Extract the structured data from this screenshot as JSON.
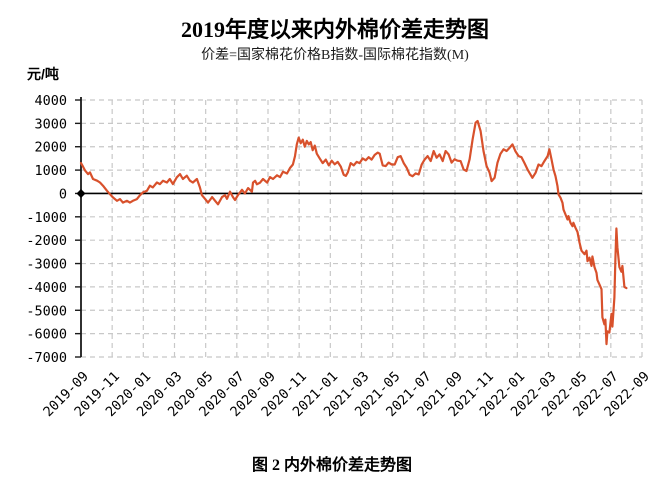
{
  "page": {
    "background": "#ffffff"
  },
  "figure_caption": "图 2  内外棉价差走势图",
  "chart_data": {
    "type": "line",
    "title": "2019年度以来内外棉价差走势图",
    "subtitle": "价差=国家棉花价格B指数-国际棉花指数(M)",
    "ylabel": "元/吨",
    "xlabel": "",
    "ylim": [
      -7000,
      4000
    ],
    "y_tick_step": 1000,
    "y_ticks": [
      4000,
      3000,
      2000,
      1000,
      0,
      -1000,
      -2000,
      -3000,
      -4000,
      -5000,
      -6000,
      -7000
    ],
    "x_tick_labels": [
      "2019-09",
      "2019-11",
      "2020-01",
      "2020-03",
      "2020-05",
      "2020-07",
      "2020-09",
      "2020-11",
      "2021-01",
      "2021-03",
      "2021-05",
      "2021-07",
      "2021-09",
      "2021-11",
      "2022-01",
      "2022-03",
      "2022-05",
      "2022-07",
      "2022-09"
    ],
    "x_range_months": [
      0,
      36
    ],
    "grid": "dashed-both-axes",
    "legend_position": "none",
    "zero_line": {
      "show": true,
      "color": "#000000"
    },
    "origin_marker": {
      "shape": "diamond",
      "x_month": 0,
      "value": 0,
      "color": "#000000"
    },
    "colors": {
      "line": "#d8512c",
      "grid": "#c8c8c8",
      "axis": "#1a1a1a",
      "text": "#000000"
    },
    "series": [
      {
        "name": "内外棉价差(国家棉花价格B指数-国际棉花指数M)",
        "color": "#d8512c",
        "x_unit": "months-since-2019-09",
        "y_unit": "元/吨",
        "points": [
          [
            0,
            1300
          ],
          [
            0.13,
            1150
          ],
          [
            0.26,
            980
          ],
          [
            0.45,
            830
          ],
          [
            0.58,
            900
          ],
          [
            0.77,
            620
          ],
          [
            1.03,
            545
          ],
          [
            1.22,
            470
          ],
          [
            1.41,
            330
          ],
          [
            1.67,
            115
          ],
          [
            1.86,
            -30
          ],
          [
            2.05,
            -170
          ],
          [
            2.31,
            -315
          ],
          [
            2.5,
            -240
          ],
          [
            2.69,
            -390
          ],
          [
            2.95,
            -315
          ],
          [
            3.14,
            -390
          ],
          [
            3.33,
            -315
          ],
          [
            3.59,
            -240
          ],
          [
            3.78,
            -80
          ],
          [
            3.97,
            45
          ],
          [
            4.23,
            115
          ],
          [
            4.42,
            330
          ],
          [
            4.61,
            260
          ],
          [
            4.87,
            470
          ],
          [
            5.06,
            400
          ],
          [
            5.26,
            545
          ],
          [
            5.51,
            470
          ],
          [
            5.7,
            620
          ],
          [
            5.9,
            400
          ],
          [
            6.15,
            690
          ],
          [
            6.35,
            830
          ],
          [
            6.54,
            620
          ],
          [
            6.79,
            760
          ],
          [
            6.99,
            545
          ],
          [
            7.18,
            470
          ],
          [
            7.44,
            620
          ],
          [
            7.63,
            260
          ],
          [
            7.76,
            -75
          ],
          [
            7.96,
            -230
          ],
          [
            8.15,
            -390
          ],
          [
            8.41,
            -155
          ],
          [
            8.6,
            -310
          ],
          [
            8.79,
            -465
          ],
          [
            9.05,
            -155
          ],
          [
            9.24,
            -75
          ],
          [
            9.37,
            -230
          ],
          [
            9.56,
            75
          ],
          [
            9.75,
            -150
          ],
          [
            9.88,
            -280
          ],
          [
            10.07,
            -75
          ],
          [
            10.33,
            155
          ],
          [
            10.52,
            0
          ],
          [
            10.72,
            230
          ],
          [
            10.97,
            75
          ],
          [
            11.04,
            465
          ],
          [
            11.17,
            540
          ],
          [
            11.29,
            390
          ],
          [
            11.49,
            465
          ],
          [
            11.68,
            620
          ],
          [
            11.94,
            465
          ],
          [
            12.13,
            700
          ],
          [
            12.32,
            620
          ],
          [
            12.58,
            775
          ],
          [
            12.77,
            700
          ],
          [
            12.96,
            930
          ],
          [
            13.22,
            855
          ],
          [
            13.41,
            1090
          ],
          [
            13.6,
            1240
          ],
          [
            13.73,
            1600
          ],
          [
            13.85,
            2100
          ],
          [
            13.97,
            2390
          ],
          [
            14.1,
            2150
          ],
          [
            14.23,
            2300
          ],
          [
            14.36,
            2000
          ],
          [
            14.49,
            2250
          ],
          [
            14.62,
            2100
          ],
          [
            14.74,
            2200
          ],
          [
            14.87,
            1850
          ],
          [
            15,
            2050
          ],
          [
            15.13,
            1700
          ],
          [
            15.32,
            1500
          ],
          [
            15.51,
            1300
          ],
          [
            15.71,
            1450
          ],
          [
            15.9,
            1200
          ],
          [
            16.09,
            1400
          ],
          [
            16.28,
            1250
          ],
          [
            16.47,
            1350
          ],
          [
            16.67,
            1150
          ],
          [
            16.86,
            800
          ],
          [
            16.99,
            750
          ],
          [
            17.12,
            900
          ],
          [
            17.31,
            1300
          ],
          [
            17.5,
            1200
          ],
          [
            17.69,
            1350
          ],
          [
            17.88,
            1300
          ],
          [
            18.08,
            1500
          ],
          [
            18.27,
            1420
          ],
          [
            18.46,
            1550
          ],
          [
            18.65,
            1450
          ],
          [
            18.85,
            1650
          ],
          [
            19.04,
            1750
          ],
          [
            19.17,
            1700
          ],
          [
            19.36,
            1200
          ],
          [
            19.55,
            1170
          ],
          [
            19.74,
            1320
          ],
          [
            19.94,
            1240
          ],
          [
            20.13,
            1240
          ],
          [
            20.32,
            1550
          ],
          [
            20.51,
            1600
          ],
          [
            20.71,
            1300
          ],
          [
            20.9,
            1100
          ],
          [
            21.09,
            800
          ],
          [
            21.28,
            740
          ],
          [
            21.47,
            860
          ],
          [
            21.67,
            815
          ],
          [
            21.86,
            1240
          ],
          [
            22.05,
            1450
          ],
          [
            22.24,
            1600
          ],
          [
            22.44,
            1385
          ],
          [
            22.63,
            1815
          ],
          [
            22.82,
            1530
          ],
          [
            23.01,
            1670
          ],
          [
            23.21,
            1385
          ],
          [
            23.4,
            1815
          ],
          [
            23.59,
            1670
          ],
          [
            23.78,
            1320
          ],
          [
            23.97,
            1460
          ],
          [
            24.17,
            1400
          ],
          [
            24.36,
            1385
          ],
          [
            24.55,
            1030
          ],
          [
            24.74,
            960
          ],
          [
            24.94,
            1460
          ],
          [
            25.13,
            2315
          ],
          [
            25.32,
            3030
          ],
          [
            25.45,
            3100
          ],
          [
            25.64,
            2670
          ],
          [
            25.83,
            1815
          ],
          [
            26.03,
            1170
          ],
          [
            26.22,
            890
          ],
          [
            26.35,
            530
          ],
          [
            26.54,
            670
          ],
          [
            26.73,
            1320
          ],
          [
            26.92,
            1700
          ],
          [
            27.12,
            1890
          ],
          [
            27.31,
            1815
          ],
          [
            27.5,
            1950
          ],
          [
            27.69,
            2100
          ],
          [
            27.88,
            1800
          ],
          [
            28.08,
            1600
          ],
          [
            28.27,
            1550
          ],
          [
            28.46,
            1300
          ],
          [
            28.65,
            1030
          ],
          [
            28.97,
            670
          ],
          [
            29.17,
            890
          ],
          [
            29.36,
            1240
          ],
          [
            29.55,
            1170
          ],
          [
            29.74,
            1385
          ],
          [
            29.94,
            1600
          ],
          [
            30.06,
            1890
          ],
          [
            30.19,
            1460
          ],
          [
            30.32,
            1030
          ],
          [
            30.45,
            740
          ],
          [
            30.58,
            310
          ],
          [
            30.64,
            -40
          ],
          [
            30.77,
            -180
          ],
          [
            30.9,
            -400
          ],
          [
            30.96,
            -690
          ],
          [
            31.09,
            -900
          ],
          [
            31.22,
            -1115
          ],
          [
            31.28,
            -970
          ],
          [
            31.41,
            -1255
          ],
          [
            31.54,
            -1400
          ],
          [
            31.6,
            -1255
          ],
          [
            31.73,
            -1470
          ],
          [
            31.86,
            -1650
          ],
          [
            31.99,
            -2100
          ],
          [
            32.12,
            -2450
          ],
          [
            32.31,
            -2600
          ],
          [
            32.44,
            -2450
          ],
          [
            32.5,
            -2900
          ],
          [
            32.63,
            -2750
          ],
          [
            32.76,
            -3100
          ],
          [
            32.82,
            -2700
          ],
          [
            32.95,
            -3150
          ],
          [
            33.08,
            -3400
          ],
          [
            33.14,
            -3700
          ],
          [
            33.27,
            -3900
          ],
          [
            33.4,
            -4100
          ],
          [
            33.46,
            -5300
          ],
          [
            33.59,
            -5600
          ],
          [
            33.65,
            -5400
          ],
          [
            33.72,
            -6450
          ],
          [
            33.78,
            -5900
          ],
          [
            33.91,
            -5950
          ],
          [
            34.04,
            -5150
          ],
          [
            34.1,
            -5700
          ],
          [
            34.23,
            -4450
          ],
          [
            34.29,
            -2800
          ],
          [
            34.36,
            -1500
          ],
          [
            34.42,
            -2300
          ],
          [
            34.55,
            -3150
          ],
          [
            34.68,
            -3350
          ],
          [
            34.74,
            -3100
          ],
          [
            34.87,
            -4000
          ],
          [
            35,
            -4050
          ]
        ]
      }
    ]
  }
}
